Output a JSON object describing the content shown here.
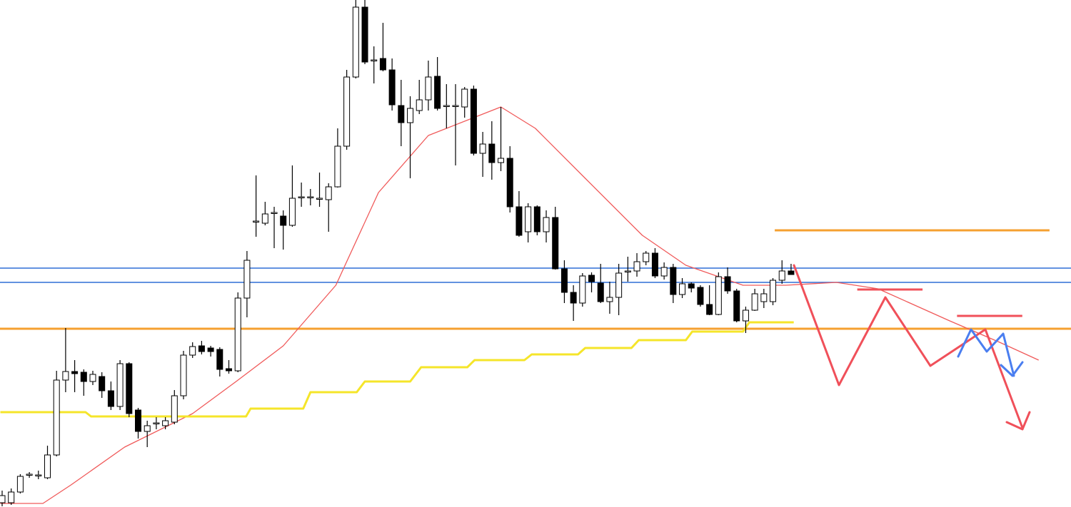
{
  "chart_data": {
    "type": "candlestick",
    "xlim": [
      -0.236,
      117.87
    ],
    "ylim": [
      0,
      711
    ],
    "up_color": "#ffffff",
    "down_color": "#000000",
    "outline_color": "#000000",
    "open": [
      6,
      6,
      21,
      46,
      45,
      41,
      73,
      178,
      190,
      189,
      176,
      183,
      163,
      141,
      201,
      136,
      106,
      118,
      114,
      119,
      156,
      213,
      226,
      223,
      221,
      194,
      191,
      293,
      401,
      398,
      413,
      408,
      395,
      435,
      435,
      433,
      431,
      449,
      506,
      603,
      701,
      627,
      629,
      613,
      563,
      539,
      556,
      571,
      604,
      563,
      563,
      561,
      586,
      496,
      509,
      483,
      489,
      421,
      386,
      421,
      386,
      406,
      334,
      301,
      286,
      325,
      314,
      288,
      294,
      331,
      331,
      344,
      356,
      324,
      336,
      298,
      313,
      308,
      284,
      270,
      323,
      303,
      261,
      276,
      288,
      288,
      318,
      331
    ],
    "high": [
      23,
      26,
      46,
      49,
      51,
      86,
      191,
      251,
      206,
      193,
      191,
      189,
      176,
      206,
      203,
      139,
      121,
      126,
      126,
      164,
      219,
      231,
      233,
      226,
      224,
      206,
      301,
      359,
      465,
      428,
      421,
      416,
      479,
      455,
      446,
      469,
      454,
      531,
      613,
      711,
      711,
      646,
      679,
      629,
      599,
      576,
      599,
      626,
      631,
      593,
      593,
      589,
      591,
      526,
      541,
      561,
      506,
      443,
      426,
      423,
      416,
      421,
      346,
      311,
      328,
      329,
      341,
      316,
      341,
      351,
      356,
      359,
      363,
      343,
      341,
      321,
      315,
      311,
      311,
      329,
      336,
      306,
      281,
      306,
      306,
      321,
      346,
      341
    ],
    "low": [
      1,
      3,
      19,
      41,
      39,
      39,
      71,
      161,
      161,
      156,
      171,
      153,
      136,
      136,
      126,
      96,
      84,
      109,
      109,
      116,
      151,
      209,
      214,
      211,
      183,
      187,
      189,
      266,
      379,
      395,
      363,
      361,
      393,
      421,
      423,
      421,
      386,
      448,
      501,
      601,
      621,
      594,
      611,
      556,
      506,
      461,
      551,
      556,
      556,
      531,
      479,
      546,
      493,
      463,
      459,
      471,
      413,
      379,
      371,
      381,
      371,
      333,
      286,
      261,
      281,
      301,
      286,
      271,
      269,
      316,
      323,
      339,
      321,
      319,
      286,
      293,
      301,
      281,
      269,
      269,
      299,
      259,
      244,
      275,
      279,
      283,
      313,
      326
    ],
    "close": [
      16,
      21,
      43,
      46,
      45,
      73,
      178,
      190,
      187,
      176,
      186,
      163,
      141,
      201,
      131,
      106,
      114,
      118,
      121,
      156,
      213,
      225,
      218,
      218,
      193,
      191,
      293,
      346,
      401,
      411,
      413,
      395,
      433,
      435,
      435,
      433,
      449,
      506,
      603,
      701,
      624,
      627,
      613,
      564,
      539,
      559,
      571,
      603,
      559,
      563,
      563,
      586,
      496,
      509,
      483,
      489,
      421,
      381,
      421,
      386,
      406,
      334,
      301,
      286,
      324,
      316,
      288,
      294,
      328,
      331,
      344,
      356,
      324,
      336,
      298,
      313,
      307,
      284,
      270,
      323,
      303,
      261,
      276,
      299,
      299,
      318,
      331,
      326
    ],
    "overlays": [
      {
        "color": "#f05a5a",
        "width": 1.3,
        "x": [
          -0.2,
          4.5,
          7.6,
          13.5,
          21,
          25.8,
          31,
          36.8,
          41.5,
          47,
          55,
          58.8,
          64.3,
          70.6,
          75.4,
          81.7,
          86.4,
          92,
          96.6,
          104.5,
          110,
          114.3
        ],
        "values": [
          5,
          5,
          31,
          84,
          131,
          176,
          226,
          311,
          441,
          521,
          561,
          531,
          461,
          381,
          339,
          311,
          311,
          315,
          306,
          261,
          231,
          206
        ]
      },
      {
        "color": "#f5e52a",
        "width": 3,
        "x": [
          -0.2,
          9.2,
          9.8,
          26.9,
          27.4,
          33.2,
          34,
          39.1,
          40,
          45,
          46.2,
          51.3,
          52.1,
          57.6,
          58.4,
          63.5,
          64.3,
          69.4,
          70.2,
          75.4,
          76.1,
          81.7,
          82.4,
          87.3
        ],
        "values": [
          133,
          133,
          127,
          127,
          138,
          138,
          161,
          161,
          176,
          176,
          196,
          196,
          206,
          206,
          214,
          214,
          223,
          223,
          234,
          234,
          246,
          246,
          259,
          259
        ]
      }
    ],
    "levels": [
      {
        "value": 335,
        "color": "#2f6fd6",
        "x": [
          -0.236,
          117.87
        ]
      },
      {
        "value": 315,
        "color": "#2f6fd6",
        "x": [
          -0.236,
          117.87
        ]
      },
      {
        "value": 250,
        "color": "#f5a030",
        "x": [
          -0.236,
          117.87
        ]
      },
      {
        "value": 388,
        "color": "#f5a030",
        "x": [
          85.2,
          115.5
        ]
      },
      {
        "value": 305,
        "color": "#f0505a",
        "x": [
          94.3,
          101.5
        ]
      },
      {
        "value": 268,
        "color": "#f0505a",
        "x": [
          105.3,
          112.5
        ]
      }
    ]
  }
}
